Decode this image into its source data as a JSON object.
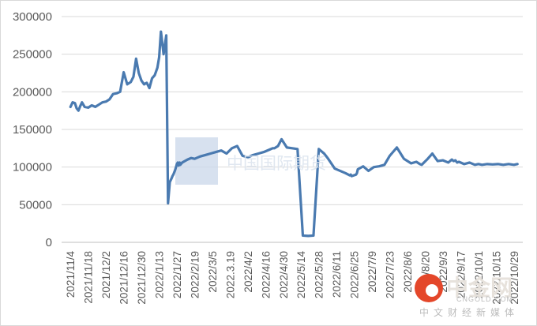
{
  "chart_data": {
    "type": "line",
    "title": "",
    "xlabel": "",
    "ylabel": "",
    "ylim": [
      0,
      300000
    ],
    "yticks": [
      "0",
      "50000",
      "100000",
      "150000",
      "200000",
      "250000",
      "300000"
    ],
    "grid": true,
    "legend": "none",
    "categories": [
      "2021/11/4",
      "2021/11/18",
      "2021/12/2",
      "2021/12/16",
      "2021/12/30",
      "2022/1/13",
      "2022/1/27",
      "2022/2/19",
      "2022/3/5",
      "2022.3.19",
      "2022/4/2",
      "2022/4/16",
      "2022/4/30",
      "2022/5/14",
      "2022/5/28",
      "2022/6/11",
      "2022/6/25",
      "2022/7/9",
      "2022/7/23",
      "2022/8/6",
      "2022/8/20",
      "2022/9/3",
      "2022/9/17",
      "2022/10/1",
      "2022/10/15",
      "2022/10/29"
    ],
    "series": [
      {
        "color": "#4a7ab0",
        "x": [
          0,
          0.12,
          0.25,
          0.35,
          0.45,
          0.55,
          0.65,
          0.8,
          1,
          1.2,
          1.4,
          1.6,
          1.8,
          2,
          2.2,
          2.4,
          2.6,
          2.8,
          3,
          3.2,
          3.4,
          3.55,
          3.7,
          3.85,
          4,
          4.15,
          4.3,
          4.45,
          4.6,
          4.75,
          4.9,
          5,
          5.1,
          5.25,
          5.4,
          5.5,
          5.6,
          5.7,
          5.75,
          5.8,
          5.9,
          5.95,
          6,
          6.05,
          6.1,
          6.13,
          6.16,
          6.19,
          6.3,
          6.45,
          6.6,
          6.8,
          7,
          7.3,
          7.6,
          7.9,
          8.2,
          8.5,
          8.8,
          9.1,
          9.4,
          9.7,
          10,
          10.3,
          10.6,
          10.9,
          11.2,
          11.4,
          11.5,
          11.7,
          11.9,
          12.2,
          12.5,
          12.8,
          13.1,
          13.4,
          13.7,
          14,
          14.3,
          14.5,
          14.7,
          14.9,
          15.2,
          15.5,
          15.75,
          15.8,
          15.85,
          16.1,
          16.15,
          16.2,
          16.5,
          16.8,
          17.1,
          17.4,
          17.7,
          18,
          18.4,
          18.8,
          19.2,
          19.5,
          19.7,
          19.8,
          20.1,
          20.4,
          20.7,
          21,
          21.3,
          21.5,
          21.6,
          21.7,
          21.8,
          21.9,
          22.2,
          22.5,
          22.8,
          23,
          23.2,
          23.5,
          23.8,
          24.1,
          24.4,
          24.7,
          25,
          25.2
        ],
        "values": [
          180000,
          186000,
          185000,
          178000,
          175000,
          181000,
          186000,
          180000,
          179000,
          182000,
          180000,
          183000,
          186000,
          187000,
          190000,
          197000,
          198000,
          200000,
          226000,
          210000,
          213000,
          220000,
          244000,
          225000,
          215000,
          210000,
          212000,
          205000,
          218000,
          222000,
          232000,
          246000,
          280000,
          250000,
          275000,
          52000,
          80000,
          85000,
          88000,
          90000,
          96000,
          100000,
          104000,
          106000,
          102000,
          104000,
          106000,
          103000,
          106000,
          108000,
          110000,
          112000,
          111000,
          114000,
          116000,
          118000,
          120000,
          122000,
          118000,
          125000,
          128000,
          115000,
          113000,
          116000,
          118000,
          120000,
          123000,
          125000,
          125000,
          128000,
          137000,
          126000,
          125000,
          124000,
          9000,
          8500,
          9000,
          124000,
          118000,
          112000,
          105000,
          98000,
          95000,
          92000,
          89000,
          90000,
          88000,
          90000,
          92000,
          97000,
          101000,
          95000,
          100000,
          101000,
          103000,
          115000,
          126000,
          111000,
          105000,
          107000,
          104000,
          103000,
          110000,
          118000,
          108000,
          109000,
          106000,
          110000,
          108000,
          109000,
          106000,
          107000,
          104000,
          106000,
          103000,
          104000,
          103000,
          104000,
          103500,
          104000,
          103000,
          104000,
          103000,
          104000
        ]
      }
    ]
  },
  "watermark": {
    "center_text": "中国国际期货",
    "brand_text": "中金网",
    "brand_sub": "CNGOLD.COM",
    "brand_cn": "中文财经新媒体"
  }
}
